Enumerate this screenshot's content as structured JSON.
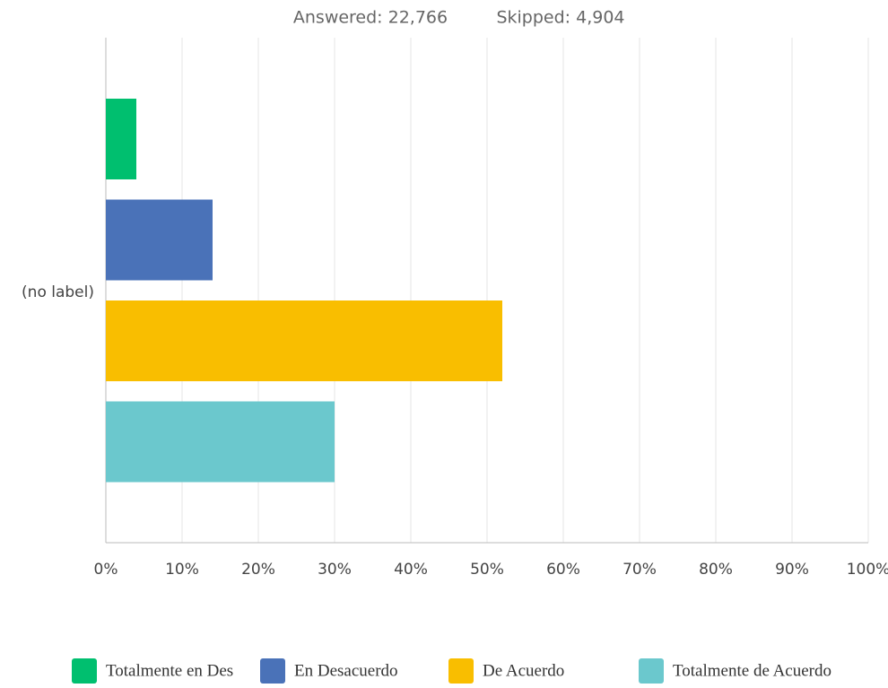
{
  "chart_data": {
    "type": "bar",
    "orientation": "horizontal",
    "answered": "Answered: 22,766",
    "skipped": "Skipped: 4,904",
    "categories": [
      "(no label)"
    ],
    "series": [
      {
        "name": "Totalmente en Des",
        "color": "#00bf6f",
        "values": [
          4
        ]
      },
      {
        "name": "En Desacuerdo",
        "color": "#4a72b8",
        "values": [
          14
        ]
      },
      {
        "name": "De Acuerdo",
        "color": "#f9be00",
        "values": [
          52
        ]
      },
      {
        "name": "Totalmente de Acuerdo",
        "color": "#6bc8cd",
        "values": [
          30
        ]
      }
    ],
    "xlim": [
      0,
      100
    ],
    "xticks": [
      {
        "value": 0,
        "label": "0%"
      },
      {
        "value": 10,
        "label": "10%"
      },
      {
        "value": 20,
        "label": "20%"
      },
      {
        "value": 30,
        "label": "30%"
      },
      {
        "value": 40,
        "label": "40%"
      },
      {
        "value": 50,
        "label": "50%"
      },
      {
        "value": 60,
        "label": "60%"
      },
      {
        "value": 70,
        "label": "70%"
      },
      {
        "value": 80,
        "label": "80%"
      },
      {
        "value": 90,
        "label": "90%"
      },
      {
        "value": 100,
        "label": "100%"
      }
    ],
    "grid": true
  }
}
